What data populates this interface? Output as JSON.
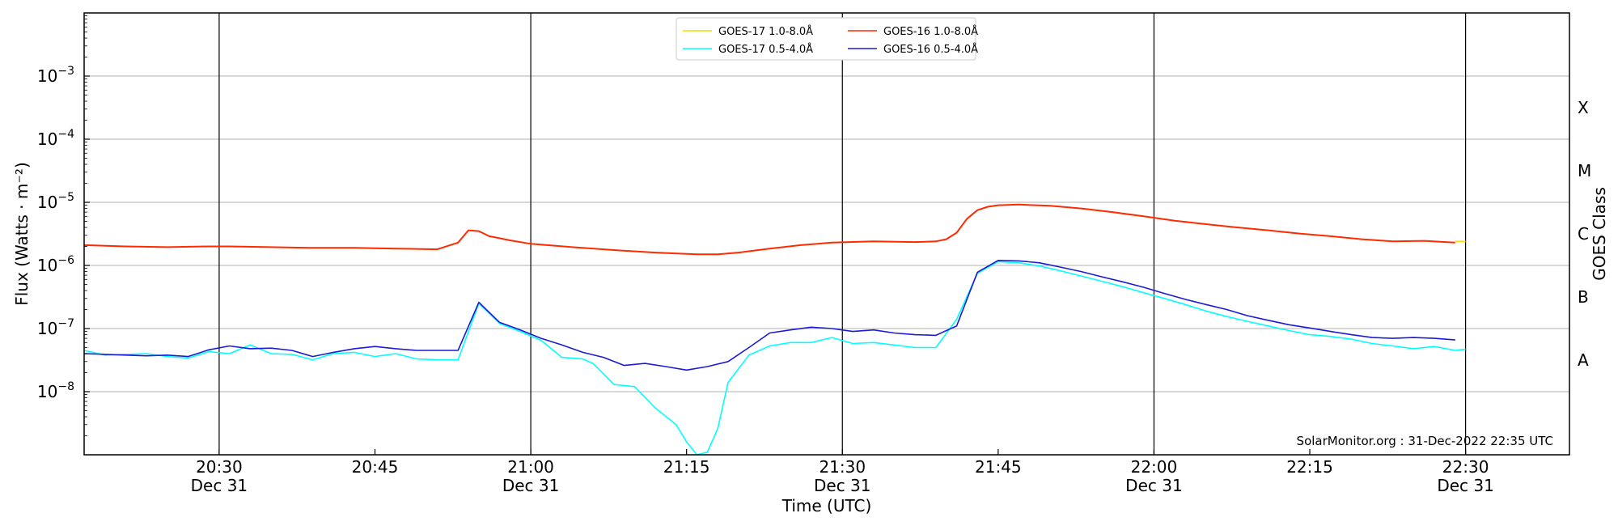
{
  "chart_data": {
    "type": "line",
    "xlabel": "Time (UTC)",
    "ylabel": "Flux (Watts · m⁻²)",
    "ylabel_right": "GOES Class",
    "credit": "SolarMonitor.org : 31-Dec-2022 22:35 UTC",
    "y_scale": "log",
    "ylim": [
      1e-09,
      0.01
    ],
    "xlim": [
      "20:17",
      "22:40"
    ],
    "y_ticks": [
      {
        "value": 1e-08,
        "base": "10",
        "exp": "−8"
      },
      {
        "value": 1e-07,
        "base": "10",
        "exp": "−7"
      },
      {
        "value": 1e-06,
        "base": "10",
        "exp": "−6"
      },
      {
        "value": 1e-05,
        "base": "10",
        "exp": "−5"
      },
      {
        "value": 0.0001,
        "base": "10",
        "exp": "−4"
      },
      {
        "value": 0.001,
        "base": "10",
        "exp": "−3"
      }
    ],
    "x_ticks": [
      {
        "time": "20:30",
        "line1": "20:30",
        "line2": "Dec 31",
        "vline": true
      },
      {
        "time": "20:45",
        "line1": "20:45",
        "line2": "",
        "vline": false
      },
      {
        "time": "21:00",
        "line1": "21:00",
        "line2": "Dec 31",
        "vline": true
      },
      {
        "time": "21:15",
        "line1": "21:15",
        "line2": "",
        "vline": false
      },
      {
        "time": "21:30",
        "line1": "21:30",
        "line2": "Dec 31",
        "vline": true
      },
      {
        "time": "21:45",
        "line1": "21:45",
        "line2": "",
        "vline": false
      },
      {
        "time": "22:00",
        "line1": "22:00",
        "line2": "Dec 31",
        "vline": true
      },
      {
        "time": "22:15",
        "line1": "22:15",
        "line2": "",
        "vline": false
      },
      {
        "time": "22:30",
        "line1": "22:30",
        "line2": "Dec 31",
        "vline": true
      }
    ],
    "goes_classes": [
      {
        "label": "A",
        "value": 3.16e-08
      },
      {
        "label": "B",
        "value": 3.16e-07
      },
      {
        "label": "C",
        "value": 3.16e-06
      },
      {
        "label": "M",
        "value": 3.16e-05
      },
      {
        "label": "X",
        "value": 0.000316
      }
    ],
    "grid": true,
    "legend_position": "top-center",
    "series": [
      {
        "name": "GOES-17 1.0-8.0Å",
        "color": "#ffd700",
        "x": [
          "22:29",
          "22:30"
        ],
        "values": [
          2.4e-06,
          2.4e-06
        ]
      },
      {
        "name": "GOES-17 0.5-4.0Å",
        "color": "#00ffff",
        "x": [
          "20:17",
          "20:19",
          "20:21",
          "20:23",
          "20:25",
          "20:27",
          "20:29",
          "20:31",
          "20:33",
          "20:35",
          "20:37",
          "20:39",
          "20:41",
          "20:43",
          "20:45",
          "20:47",
          "20:49",
          "20:51",
          "20:53",
          "20:55",
          "20:57",
          "20:59",
          "21:01",
          "21:03",
          "21:05",
          "21:06",
          "21:08",
          "21:10",
          "21:12",
          "21:14",
          "21:15",
          "21:16",
          "21:17",
          "21:18",
          "21:19",
          "21:21",
          "21:23",
          "21:25",
          "21:27",
          "21:29",
          "21:31",
          "21:33",
          "21:35",
          "21:37",
          "21:39",
          "21:41",
          "21:43",
          "21:45",
          "21:47",
          "21:49",
          "21:51",
          "21:53",
          "21:55",
          "21:57",
          "21:59",
          "22:01",
          "22:03",
          "22:05",
          "22:07",
          "22:09",
          "22:11",
          "22:13",
          "22:15",
          "22:17",
          "22:19",
          "22:21",
          "22:23",
          "22:25",
          "22:27",
          "22:29",
          "22:30"
        ],
        "values": [
          4.5e-08,
          3.8e-08,
          3.9e-08,
          4e-08,
          3.6e-08,
          3.4e-08,
          4.3e-08,
          4e-08,
          5.5e-08,
          4e-08,
          3.9e-08,
          3.2e-08,
          4e-08,
          4.2e-08,
          3.6e-08,
          4e-08,
          3.3e-08,
          3.2e-08,
          3.2e-08,
          2.5e-07,
          1.2e-07,
          9e-08,
          6.5e-08,
          3.5e-08,
          3.3e-08,
          2.8e-08,
          1.3e-08,
          1.2e-08,
          5.5e-09,
          3e-09,
          1.6e-09,
          1e-09,
          1.1e-09,
          2.6e-09,
          1.4e-08,
          3.8e-08,
          5.3e-08,
          6e-08,
          6e-08,
          7.2e-08,
          5.8e-08,
          6e-08,
          5.5e-08,
          5e-08,
          5e-08,
          1.4e-07,
          7.5e-07,
          1.15e-06,
          1.1e-06,
          9.8e-07,
          8.2e-07,
          6.8e-07,
          5.6e-07,
          4.6e-07,
          3.7e-07,
          3e-07,
          2.4e-07,
          1.9e-07,
          1.55e-07,
          1.3e-07,
          1.1e-07,
          9.3e-08,
          8e-08,
          7.5e-08,
          6.8e-08,
          5.8e-08,
          5.3e-08,
          4.8e-08,
          5.2e-08,
          4.5e-08,
          4.7e-08
        ]
      },
      {
        "name": "GOES-16 1.0-8.0Å",
        "color": "#ff2a00",
        "x": [
          "20:17",
          "20:21",
          "20:25",
          "20:29",
          "20:31",
          "20:35",
          "20:39",
          "20:43",
          "20:47",
          "20:51",
          "20:53",
          "20:54",
          "20:55",
          "20:56",
          "20:57",
          "20:58",
          "21:00",
          "21:04",
          "21:08",
          "21:12",
          "21:16",
          "21:18",
          "21:20",
          "21:23",
          "21:26",
          "21:29",
          "21:33",
          "21:37",
          "21:39",
          "21:40",
          "21:41",
          "21:42",
          "21:43",
          "21:44",
          "21:45",
          "21:47",
          "21:50",
          "21:53",
          "21:56",
          "21:59",
          "22:02",
          "22:05",
          "22:08",
          "22:11",
          "22:14",
          "22:17",
          "22:20",
          "22:23",
          "22:26",
          "22:29"
        ],
        "values": [
          2.1e-06,
          2e-06,
          1.95e-06,
          2e-06,
          2e-06,
          1.95e-06,
          1.9e-06,
          1.9e-06,
          1.85e-06,
          1.8e-06,
          2.3e-06,
          3.6e-06,
          3.5e-06,
          2.9e-06,
          2.7e-06,
          2.5e-06,
          2.2e-06,
          1.95e-06,
          1.75e-06,
          1.6e-06,
          1.5e-06,
          1.5e-06,
          1.6e-06,
          1.85e-06,
          2.1e-06,
          2.3e-06,
          2.4e-06,
          2.35e-06,
          2.4e-06,
          2.6e-06,
          3.3e-06,
          5.5e-06,
          7.5e-06,
          8.5e-06,
          9e-06,
          9.2e-06,
          8.8e-06,
          8e-06,
          7e-06,
          6e-06,
          5.1e-06,
          4.5e-06,
          4e-06,
          3.6e-06,
          3.2e-06,
          2.9e-06,
          2.6e-06,
          2.4e-06,
          2.45e-06,
          2.3e-06
        ]
      },
      {
        "name": "GOES-16 0.5-4.0Å",
        "color": "#1a1ad8",
        "x": [
          "20:17",
          "20:19",
          "20:21",
          "20:23",
          "20:25",
          "20:27",
          "20:29",
          "20:31",
          "20:33",
          "20:35",
          "20:37",
          "20:39",
          "20:41",
          "20:43",
          "20:45",
          "20:47",
          "20:49",
          "20:51",
          "20:53",
          "20:55",
          "20:57",
          "20:59",
          "21:01",
          "21:03",
          "21:05",
          "21:07",
          "21:09",
          "21:11",
          "21:13",
          "21:15",
          "21:17",
          "21:19",
          "21:21",
          "21:23",
          "21:25",
          "21:27",
          "21:29",
          "21:31",
          "21:33",
          "21:35",
          "21:37",
          "21:39",
          "21:41",
          "21:43",
          "21:45",
          "21:47",
          "21:49",
          "21:51",
          "21:53",
          "21:55",
          "21:57",
          "21:59",
          "22:01",
          "22:03",
          "22:05",
          "22:07",
          "22:09",
          "22:11",
          "22:13",
          "22:15",
          "22:17",
          "22:19",
          "22:21",
          "22:23",
          "22:25",
          "22:27",
          "22:29"
        ],
        "values": [
          4e-08,
          3.9e-08,
          3.8e-08,
          3.7e-08,
          3.8e-08,
          3.6e-08,
          4.6e-08,
          5.3e-08,
          4.8e-08,
          4.9e-08,
          4.5e-08,
          3.6e-08,
          4.2e-08,
          4.8e-08,
          5.2e-08,
          4.8e-08,
          4.5e-08,
          4.5e-08,
          4.5e-08,
          2.6e-07,
          1.25e-07,
          9.5e-08,
          7e-08,
          5.5e-08,
          4.2e-08,
          3.5e-08,
          2.6e-08,
          2.8e-08,
          2.5e-08,
          2.2e-08,
          2.5e-08,
          3e-08,
          5e-08,
          8.5e-08,
          9.5e-08,
          1.05e-07,
          1e-07,
          9e-08,
          9.5e-08,
          8.5e-08,
          8e-08,
          7.8e-08,
          1.1e-07,
          7.8e-07,
          1.2e-06,
          1.18e-06,
          1.1e-06,
          9.4e-07,
          8e-07,
          6.6e-07,
          5.5e-07,
          4.5e-07,
          3.6e-07,
          2.9e-07,
          2.4e-07,
          2e-07,
          1.6e-07,
          1.35e-07,
          1.15e-07,
          1.02e-07,
          9e-08,
          8e-08,
          7.2e-08,
          7e-08,
          7.2e-08,
          7e-08,
          6.6e-08
        ]
      }
    ]
  }
}
